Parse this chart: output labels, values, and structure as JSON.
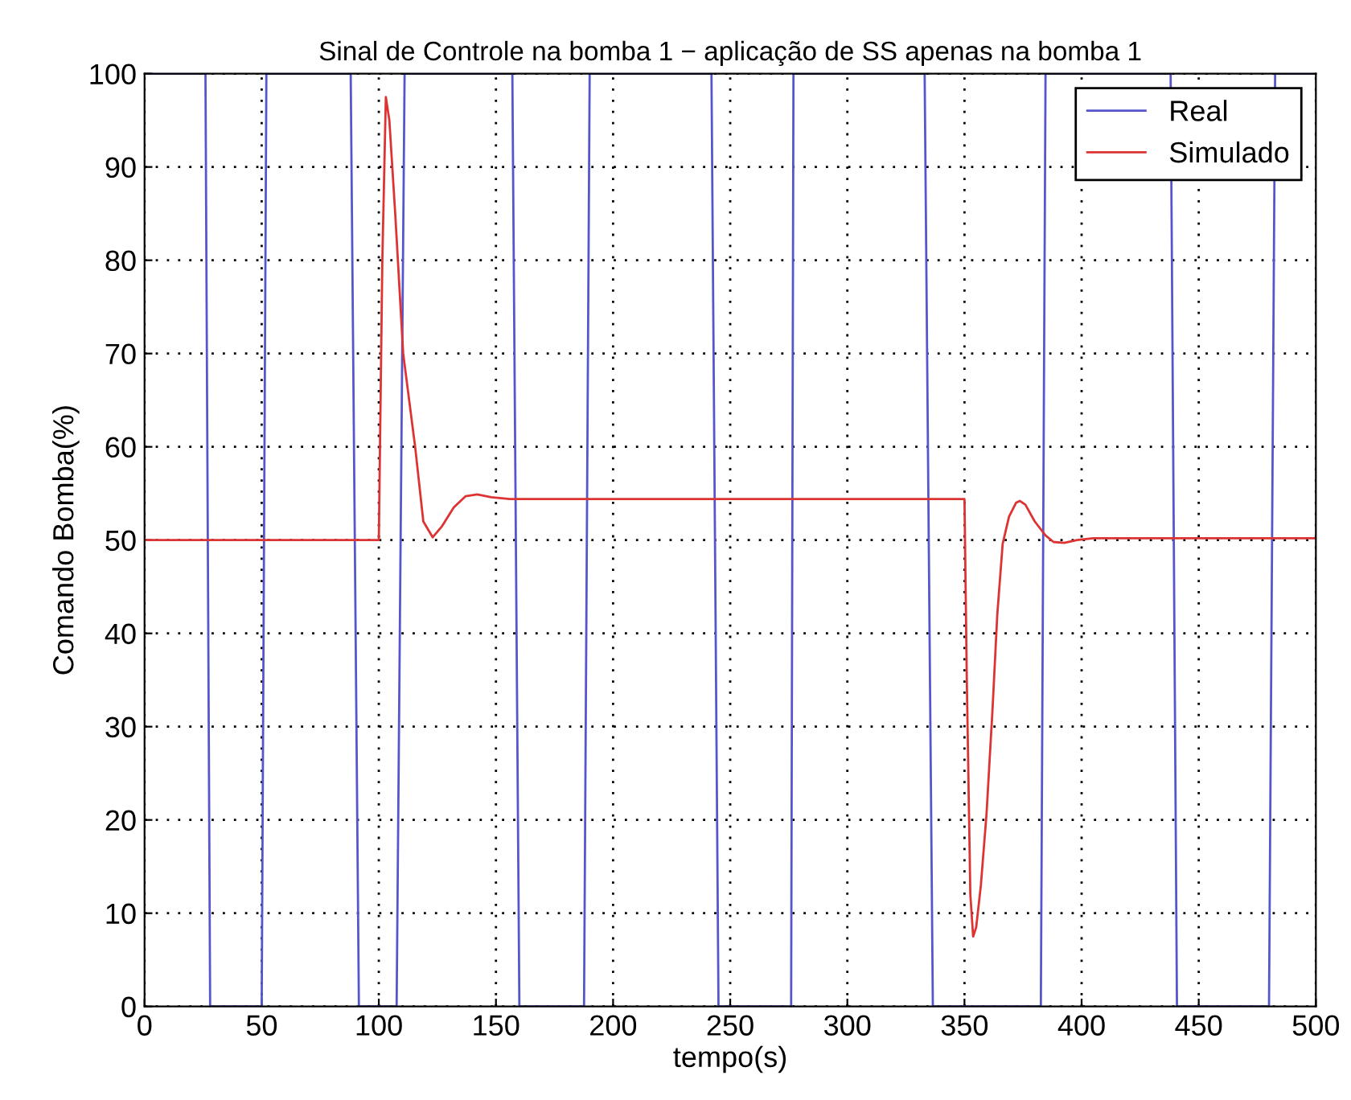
{
  "chart_data": {
    "type": "line",
    "title": "Sinal de Controle na bomba 1 − aplicação de SS apenas na bomba 1",
    "xlabel": "tempo(s)",
    "ylabel": "Comando Bomba(%)",
    "series": [
      {
        "name": "Real",
        "color": "#5555cc",
        "x": [
          0,
          26,
          28,
          50,
          52,
          88,
          91.5,
          107.6,
          111,
          157,
          160,
          187.6,
          190,
          242,
          245,
          276,
          277,
          333,
          336.5,
          382.6,
          384.6,
          438,
          440.7,
          480,
          482.6,
          500
        ],
        "values": [
          100,
          100,
          0,
          0,
          100,
          100,
          0,
          0,
          100,
          100,
          0,
          0,
          100,
          100,
          0,
          0,
          100,
          100,
          0,
          0,
          100,
          100,
          0,
          0,
          100,
          100
        ]
      },
      {
        "name": "Simulado",
        "color": "#dd3333",
        "x": [
          0,
          100,
          101.5,
          103,
          104.5,
          107,
          110.4,
          115.5,
          119,
          123,
          127,
          132,
          137,
          142,
          148,
          156,
          350,
          351,
          352.5,
          353.7,
          355,
          357,
          359.4,
          362,
          364,
          366.3,
          369,
          372,
          373.6,
          376,
          380,
          384.6,
          388,
          392.6,
          398,
          405,
          500
        ],
        "values": [
          50,
          50,
          80,
          97.5,
          95,
          85,
          70,
          60,
          52,
          50.3,
          51.5,
          53.5,
          54.7,
          54.9,
          54.6,
          54.4,
          54.4,
          35,
          12,
          7.5,
          8.5,
          13,
          20.6,
          32,
          42,
          49.6,
          52.5,
          54,
          54.2,
          53.8,
          52,
          50.5,
          49.8,
          49.7,
          50,
          50.2,
          50.2
        ]
      }
    ],
    "xlim": [
      0,
      500
    ],
    "ylim": [
      0,
      100
    ],
    "xticks": [
      0,
      50,
      100,
      150,
      200,
      250,
      300,
      350,
      400,
      450,
      500
    ],
    "yticks": [
      0,
      10,
      20,
      30,
      40,
      50,
      60,
      70,
      80,
      90,
      100
    ],
    "grid": true,
    "legend": "top right",
    "marker": "none",
    "line_style": "solid"
  }
}
